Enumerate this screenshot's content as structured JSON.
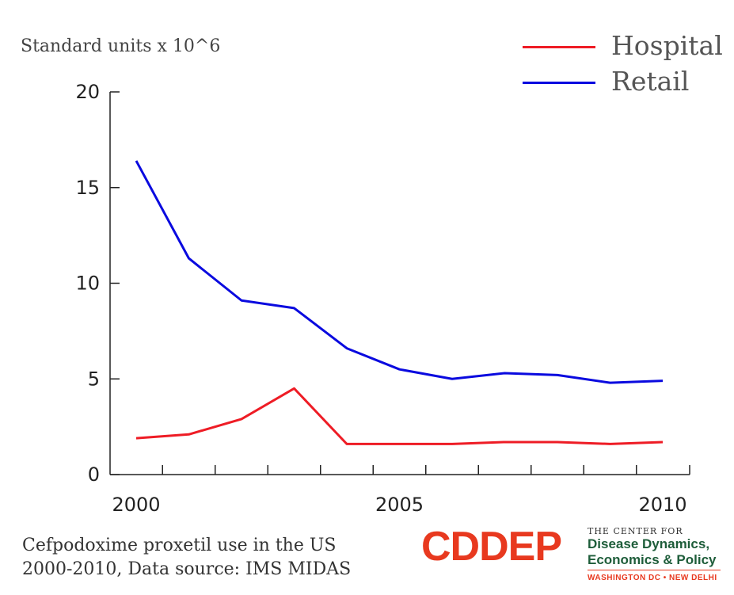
{
  "chart_data": {
    "type": "line",
    "ylabel": "Standard units x 10^6",
    "xlim": [
      2000,
      2010
    ],
    "ylim": [
      0,
      20
    ],
    "x_ticks": [
      2000,
      2005,
      2010
    ],
    "y_ticks": [
      0,
      5,
      10,
      15,
      20
    ],
    "legend": "top-right",
    "grid": false,
    "x": [
      2000,
      2001,
      2002,
      2003,
      2004,
      2005,
      2006,
      2007,
      2008,
      2009,
      2010
    ],
    "series": [
      {
        "name": "Hospital",
        "color": "#ee1c25",
        "values": [
          1.9,
          2.1,
          2.9,
          4.5,
          1.6,
          1.6,
          1.6,
          1.7,
          1.7,
          1.6,
          1.7
        ]
      },
      {
        "name": "Retail",
        "color": "#0a0adf",
        "values": [
          16.4,
          11.3,
          9.1,
          8.7,
          6.6,
          5.5,
          5.0,
          5.3,
          5.2,
          4.8,
          4.9
        ]
      }
    ]
  },
  "caption": {
    "line1": "Cefpodoxime proxetil use in the US",
    "line2": "2000-2010, Data source: IMS MIDAS"
  },
  "logo": {
    "acronym": "CDDEP",
    "tagline_small": "THE CENTER FOR",
    "tagline_line1": "Disease Dynamics,",
    "tagline_line2": "Economics & Policy",
    "cities": "WASHINGTON DC • NEW DELHI",
    "brand_color": "#e8391f",
    "secondary_color": "#1e5d3a"
  }
}
